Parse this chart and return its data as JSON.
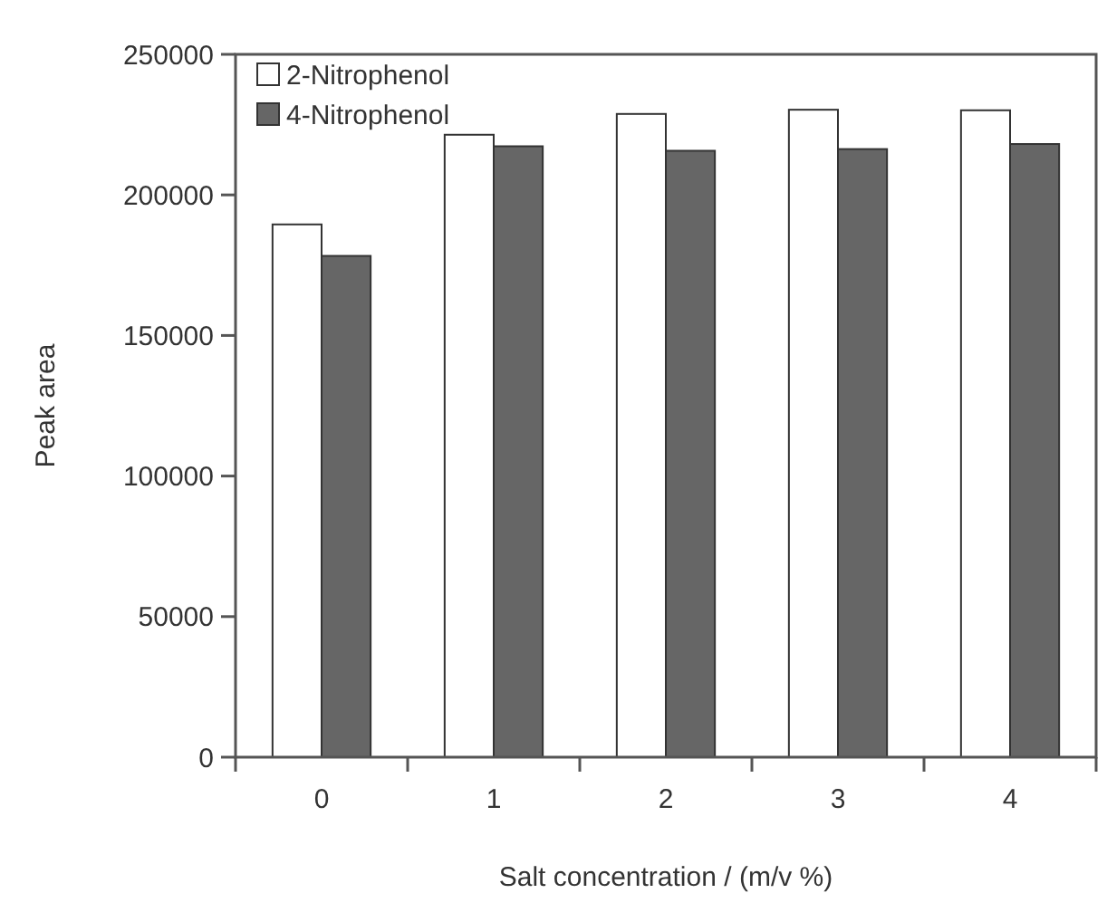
{
  "chart_data": {
    "type": "bar",
    "xlabel": "Salt concentration / (m/v %)",
    "ylabel": "Peak area",
    "categories": [
      "0",
      "1",
      "2",
      "3",
      "4"
    ],
    "series": [
      {
        "name": "2-Nitrophenol",
        "color": "#ffffff",
        "values": [
          189500,
          221400,
          228800,
          230300,
          230100
        ]
      },
      {
        "name": "4-Nitrophenol",
        "color": "#666666",
        "values": [
          178300,
          217300,
          215700,
          216300,
          218100
        ]
      }
    ],
    "ylim": [
      0,
      250000
    ],
    "yticks": [
      0,
      50000,
      100000,
      150000,
      200000,
      250000
    ],
    "legend": "top left",
    "grid": false
  }
}
